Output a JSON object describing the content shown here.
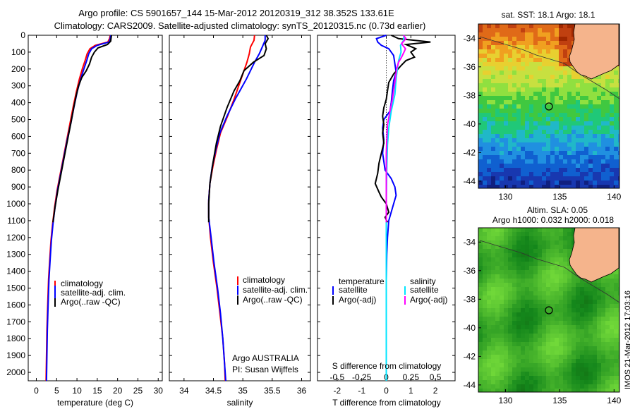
{
  "header": {
    "line1": "Argo profile: CS 5901657_144 15-Mar-2012 20120319_312 38.352S 133.61E",
    "line2": "Climatology: CARS2009. Satellite-adjusted climatology: synTS_20120315.nc (0.73d earlier)"
  },
  "colors": {
    "climatology": "#ff0000",
    "satellite": "#0000ff",
    "argo": "#000000",
    "salinity_sat": "#00e5ff",
    "salinity_argo": "#ff00ff"
  },
  "chart_data": [
    {
      "type": "line",
      "id": "temperature",
      "xlabel": "temperature (deg C)",
      "xlim": [
        -2,
        31
      ],
      "xticks": [
        0,
        5,
        10,
        15,
        20,
        25,
        30
      ],
      "ylim": [
        0,
        2050
      ],
      "yticks": [
        0,
        100,
        200,
        300,
        400,
        500,
        600,
        700,
        800,
        900,
        1000,
        1100,
        1200,
        1300,
        1400,
        1500,
        1600,
        1700,
        1800,
        1900,
        2000
      ],
      "legend": [
        "climatology",
        "satellite-adj. clim.",
        "Argo(..raw -QC)"
      ],
      "series": [
        {
          "name": "climatology",
          "color": "#ff0000",
          "points": [
            [
              18.2,
              0
            ],
            [
              18.0,
              20
            ],
            [
              17.6,
              40
            ],
            [
              14.5,
              60
            ],
            [
              13.2,
              80
            ],
            [
              12.5,
              110
            ],
            [
              12.0,
              150
            ],
            [
              11.3,
              200
            ],
            [
              10.6,
              260
            ],
            [
              9.9,
              330
            ],
            [
              9.1,
              420
            ],
            [
              8.3,
              520
            ],
            [
              7.5,
              620
            ],
            [
              6.7,
              720
            ],
            [
              5.9,
              820
            ],
            [
              5.1,
              920
            ],
            [
              4.5,
              1020
            ],
            [
              4.0,
              1120
            ],
            [
              3.6,
              1220
            ],
            [
              3.3,
              1330
            ],
            [
              3.0,
              1450
            ],
            [
              2.8,
              1600
            ],
            [
              2.6,
              1750
            ],
            [
              2.5,
              1900
            ],
            [
              2.4,
              2050
            ]
          ]
        },
        {
          "name": "satellite-adj. clim.",
          "color": "#0000ff",
          "points": [
            [
              18.3,
              0
            ],
            [
              18.2,
              20
            ],
            [
              17.9,
              40
            ],
            [
              15.0,
              60
            ],
            [
              13.6,
              80
            ],
            [
              12.9,
              110
            ],
            [
              12.4,
              150
            ],
            [
              11.7,
              200
            ],
            [
              10.9,
              260
            ],
            [
              10.1,
              330
            ],
            [
              9.3,
              420
            ],
            [
              8.5,
              520
            ],
            [
              7.6,
              620
            ],
            [
              6.8,
              720
            ],
            [
              6.0,
              820
            ],
            [
              5.2,
              920
            ],
            [
              4.6,
              1020
            ],
            [
              4.1,
              1120
            ],
            [
              3.7,
              1220
            ],
            [
              3.4,
              1330
            ],
            [
              3.1,
              1450
            ],
            [
              2.9,
              1600
            ],
            [
              2.7,
              1750
            ],
            [
              2.6,
              1900
            ],
            [
              2.5,
              2050
            ]
          ]
        },
        {
          "name": "Argo(..raw -QC)",
          "color": "#000000",
          "points": [
            [
              18.5,
              0
            ],
            [
              18.4,
              15
            ],
            [
              18.3,
              35
            ],
            [
              17.5,
              55
            ],
            [
              15.2,
              75
            ],
            [
              14.3,
              100
            ],
            [
              13.6,
              130
            ],
            [
              13.1,
              170
            ],
            [
              12.3,
              210
            ],
            [
              11.2,
              250
            ],
            [
              10.4,
              300
            ],
            [
              9.8,
              360
            ],
            [
              9.2,
              430
            ],
            [
              8.5,
              520
            ],
            [
              7.7,
              620
            ],
            [
              6.9,
              720
            ],
            [
              6.1,
              820
            ],
            [
              5.3,
              920
            ],
            [
              4.6,
              1020
            ],
            [
              4.1,
              1110
            ]
          ]
        }
      ]
    },
    {
      "type": "line",
      "id": "salinity",
      "xlabel": "salinity",
      "xlim": [
        33.75,
        36.15
      ],
      "xticks": [
        34,
        34.5,
        35,
        35.5,
        36
      ],
      "ylim": [
        0,
        2050
      ],
      "legend": [
        "climatology",
        "satellite-adj. clim.",
        "Argo(..raw -QC)"
      ],
      "annotation": [
        "Argo AUSTRALIA",
        "PI: Susan Wijffels"
      ],
      "series": [
        {
          "name": "climatology",
          "color": "#ff0000",
          "points": [
            [
              35.2,
              0
            ],
            [
              35.19,
              30
            ],
            [
              35.13,
              70
            ],
            [
              35.11,
              110
            ],
            [
              35.07,
              160
            ],
            [
              34.97,
              260
            ],
            [
              34.85,
              380
            ],
            [
              34.74,
              480
            ],
            [
              34.62,
              580
            ],
            [
              34.55,
              680
            ],
            [
              34.49,
              780
            ],
            [
              34.44,
              880
            ],
            [
              34.42,
              980
            ],
            [
              34.42,
              1080
            ],
            [
              34.45,
              1200
            ],
            [
              34.5,
              1350
            ],
            [
              34.56,
              1500
            ],
            [
              34.61,
              1650
            ],
            [
              34.66,
              1800
            ],
            [
              34.69,
              1950
            ],
            [
              34.7,
              2050
            ]
          ]
        },
        {
          "name": "satellite-adj. clim.",
          "color": "#0000ff",
          "points": [
            [
              35.38,
              0
            ],
            [
              35.38,
              30
            ],
            [
              35.33,
              70
            ],
            [
              35.28,
              110
            ],
            [
              35.2,
              160
            ],
            [
              35.06,
              260
            ],
            [
              34.87,
              380
            ],
            [
              34.73,
              480
            ],
            [
              34.61,
              580
            ],
            [
              34.54,
              680
            ],
            [
              34.48,
              780
            ],
            [
              34.44,
              880
            ],
            [
              34.42,
              980
            ],
            [
              34.42,
              1080
            ],
            [
              34.46,
              1200
            ],
            [
              34.51,
              1350
            ],
            [
              34.57,
              1500
            ],
            [
              34.62,
              1650
            ],
            [
              34.66,
              1800
            ],
            [
              34.69,
              1950
            ],
            [
              34.71,
              2050
            ]
          ]
        },
        {
          "name": "Argo(..raw -QC)",
          "color": "#000000",
          "points": [
            [
              35.4,
              0
            ],
            [
              35.43,
              20
            ],
            [
              35.38,
              50
            ],
            [
              35.4,
              80
            ],
            [
              35.36,
              120
            ],
            [
              35.18,
              160
            ],
            [
              35.02,
              210
            ],
            [
              34.95,
              270
            ],
            [
              34.85,
              330
            ],
            [
              34.73,
              430
            ],
            [
              34.62,
              540
            ],
            [
              34.55,
              640
            ],
            [
              34.49,
              760
            ],
            [
              34.44,
              880
            ],
            [
              34.42,
              1000
            ],
            [
              34.42,
              1110
            ]
          ]
        }
      ]
    },
    {
      "type": "line",
      "id": "difference",
      "xlabel": "T difference from climatology",
      "xlabel_top": "S difference from climatology",
      "xlim": [
        -2.8,
        2.8
      ],
      "xticks": [
        -2,
        -1,
        0,
        1,
        2
      ],
      "sticks": [
        "-0.5",
        "-0.25",
        "0",
        "0.25",
        "0.5"
      ],
      "ylim": [
        0,
        2050
      ],
      "legend_temperature": [
        "temperature",
        "satellite",
        "Argo(-adj)"
      ],
      "legend_salinity": [
        "salinity",
        "satellite",
        "Argo(-adj)"
      ],
      "series": [
        {
          "name": "temperature satellite",
          "color": "#0000ff",
          "points": [
            [
              0,
              0
            ],
            [
              -0.4,
              20
            ],
            [
              -0.35,
              40
            ],
            [
              -0.2,
              60
            ],
            [
              0.1,
              80
            ],
            [
              0.3,
              120
            ],
            [
              0.35,
              170
            ],
            [
              0.4,
              220
            ],
            [
              0.3,
              270
            ],
            [
              0.25,
              330
            ],
            [
              0.2,
              400
            ],
            [
              0.15,
              450
            ],
            [
              -0.1,
              500
            ],
            [
              -0.15,
              550
            ],
            [
              -0.1,
              620
            ],
            [
              -0.15,
              700
            ],
            [
              -0.05,
              800
            ],
            [
              0.2,
              850
            ],
            [
              0.35,
              900
            ],
            [
              0.4,
              950
            ],
            [
              0.3,
              1000
            ],
            [
              0.1,
              1100
            ],
            [
              0.05,
              1200
            ],
            [
              0.02,
              1300
            ],
            [
              0.0,
              1450
            ],
            [
              0.0,
              1600
            ],
            [
              0.0,
              1800
            ],
            [
              0.0,
              2000
            ]
          ]
        },
        {
          "name": "temperature Argo(-adj)",
          "color": "#000000",
          "points": [
            [
              0.2,
              0
            ],
            [
              0.5,
              20
            ],
            [
              1.8,
              40
            ],
            [
              0.8,
              55
            ],
            [
              1.2,
              80
            ],
            [
              1.0,
              100
            ],
            [
              1.15,
              130
            ],
            [
              0.8,
              150
            ],
            [
              0.6,
              180
            ],
            [
              0.3,
              230
            ],
            [
              0.1,
              280
            ],
            [
              0.05,
              330
            ],
            [
              0.0,
              380
            ],
            [
              -0.1,
              430
            ],
            [
              -0.15,
              480
            ],
            [
              -0.1,
              530
            ],
            [
              -0.15,
              580
            ],
            [
              -0.1,
              640
            ],
            [
              -0.2,
              700
            ],
            [
              -0.3,
              760
            ],
            [
              -0.35,
              820
            ],
            [
              -0.45,
              880
            ],
            [
              -0.3,
              930
            ],
            [
              -0.2,
              960
            ],
            [
              0.0,
              1000
            ],
            [
              0.1,
              1050
            ],
            [
              -0.05,
              1080
            ],
            [
              0.05,
              1110
            ]
          ]
        },
        {
          "name": "salinity satellite",
          "color": "#00e5ff",
          "points": [
            [
              0.72,
              0
            ],
            [
              0.7,
              30
            ],
            [
              0.58,
              60
            ],
            [
              0.6,
              100
            ],
            [
              0.5,
              150
            ],
            [
              0.45,
              200
            ],
            [
              0.4,
              260
            ],
            [
              0.35,
              350
            ],
            [
              0.2,
              450
            ],
            [
              0.1,
              550
            ],
            [
              0.05,
              650
            ],
            [
              0.02,
              800
            ],
            [
              0.0,
              1000
            ],
            [
              0.0,
              1200
            ],
            [
              0.0,
              1500
            ],
            [
              0.0,
              1800
            ],
            [
              0.0,
              2050
            ]
          ]
        },
        {
          "name": "salinity Argo(-adj)",
          "color": "#ff00ff",
          "points": [
            [
              0.7,
              0
            ],
            [
              0.8,
              20
            ],
            [
              0.62,
              50
            ],
            [
              0.78,
              80
            ],
            [
              0.72,
              100
            ],
            [
              0.62,
              130
            ],
            [
              0.5,
              160
            ],
            [
              0.42,
              200
            ],
            [
              0.36,
              270
            ],
            [
              0.3,
              330
            ],
            [
              0.25,
              380
            ],
            [
              0.15,
              450
            ],
            [
              0.05,
              530
            ],
            [
              0.02,
              620
            ],
            [
              0.0,
              700
            ],
            [
              0.0,
              800
            ],
            [
              0.0,
              900
            ],
            [
              0.0,
              1000
            ],
            [
              0.0,
              1110
            ]
          ]
        }
      ]
    },
    {
      "type": "heatmap",
      "id": "sst-map",
      "title": "sat. SST: 18.1  Argo: 18.1",
      "xticks": [
        130,
        135,
        140
      ],
      "yticks": [
        -34,
        -36,
        -38,
        -40,
        -42,
        -44
      ],
      "xlim": [
        127.5,
        140.5
      ],
      "ylim": [
        -44.5,
        -33
      ]
    },
    {
      "type": "heatmap",
      "id": "sla-map",
      "title_line1": "Altim. SLA: 0.05",
      "title_line2": "Argo h1000: 0.032 h2000: 0.018",
      "xticks": [
        130,
        135,
        140
      ],
      "yticks": [
        -34,
        -36,
        -38,
        -40,
        -42,
        -44
      ],
      "xlim": [
        127.5,
        140.5
      ],
      "ylim": [
        -44.5,
        -33
      ]
    }
  ],
  "stamp": "IMOS 21-Mar-2012 17:03:16"
}
